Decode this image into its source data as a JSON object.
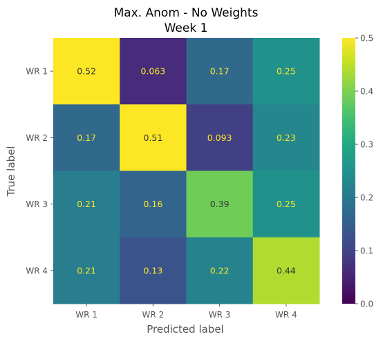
{
  "chart_data": {
    "type": "heatmap",
    "title": "Max. Anom - No Weights",
    "subtitle": "Week 1",
    "xlabel": "Predicted label",
    "ylabel": "True label",
    "x_categories": [
      "WR 1",
      "WR 2",
      "WR 3",
      "WR 4"
    ],
    "y_categories": [
      "WR 1",
      "WR 2",
      "WR 3",
      "WR 4"
    ],
    "values": [
      [
        0.52,
        0.063,
        0.17,
        0.25
      ],
      [
        0.17,
        0.51,
        0.093,
        0.23
      ],
      [
        0.21,
        0.16,
        0.39,
        0.25
      ],
      [
        0.21,
        0.13,
        0.22,
        0.44
      ]
    ],
    "value_labels": [
      [
        "0.52",
        "0.063",
        "0.17",
        "0.25"
      ],
      [
        "0.17",
        "0.51",
        "0.093",
        "0.23"
      ],
      [
        "0.21",
        "0.16",
        "0.39",
        "0.25"
      ],
      [
        "0.21",
        "0.13",
        "0.22",
        "0.44"
      ]
    ],
    "colormap": "viridis",
    "vmin": 0.0,
    "vmax": 0.5,
    "colorbar_ticks": [
      "0.0",
      "0.1",
      "0.2",
      "0.3",
      "0.4",
      "0.5"
    ],
    "grid": false
  }
}
